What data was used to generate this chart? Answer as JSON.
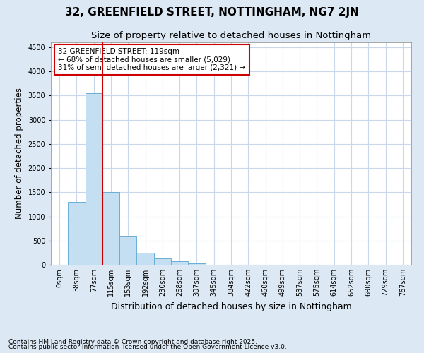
{
  "title": "32, GREENFIELD STREET, NOTTINGHAM, NG7 2JN",
  "subtitle": "Size of property relative to detached houses in Nottingham",
  "xlabel": "Distribution of detached houses by size in Nottingham",
  "ylabel": "Number of detached properties",
  "background_color": "#dce9f5",
  "plot_bg_color": "#ffffff",
  "bar_color": "#c5dff2",
  "bar_edge_color": "#6aaed6",
  "grid_color": "#c8d8ea",
  "bin_labels": [
    "0sqm",
    "38sqm",
    "77sqm",
    "115sqm",
    "153sqm",
    "192sqm",
    "230sqm",
    "268sqm",
    "307sqm",
    "345sqm",
    "384sqm",
    "422sqm",
    "460sqm",
    "499sqm",
    "537sqm",
    "575sqm",
    "614sqm",
    "652sqm",
    "690sqm",
    "729sqm",
    "767sqm"
  ],
  "bar_values": [
    0,
    1300,
    3550,
    1500,
    600,
    250,
    130,
    75,
    30,
    0,
    0,
    0,
    0,
    0,
    0,
    0,
    0,
    0,
    0,
    0,
    0
  ],
  "ylim": [
    0,
    4600
  ],
  "yticks": [
    0,
    500,
    1000,
    1500,
    2000,
    2500,
    3000,
    3500,
    4000,
    4500
  ],
  "red_line_x": 2.5,
  "annotation_title": "32 GREENFIELD STREET: 119sqm",
  "annotation_line1": "← 68% of detached houses are smaller (5,029)",
  "annotation_line2": "31% of semi-detached houses are larger (2,321) →",
  "annotation_color": "#cc0000",
  "footer_line1": "Contains HM Land Registry data © Crown copyright and database right 2025.",
  "footer_line2": "Contains public sector information licensed under the Open Government Licence v3.0.",
  "title_fontsize": 11,
  "subtitle_fontsize": 9.5,
  "ylabel_fontsize": 8.5,
  "xlabel_fontsize": 9,
  "tick_fontsize": 7,
  "annotation_fontsize": 7.5,
  "footer_fontsize": 6.5
}
